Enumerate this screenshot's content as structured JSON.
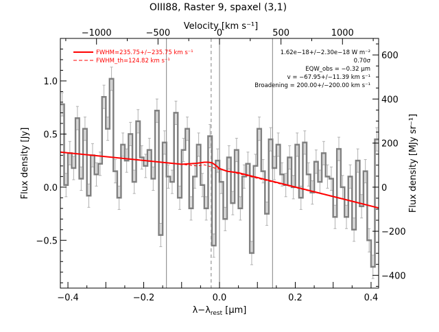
{
  "chart_data": {
    "type": "line",
    "title": "OIII88, Raster 9, spaxel (3,1)",
    "xlabel": "λ−λ",
    "xlabel_sub": "rest",
    "xlabel_unit": " [μm]",
    "ylabel": "Flux density [Jy]",
    "top_axis_label": "Velocity [km s⁻¹]",
    "right_axis_label": "Flux density [MJy sr⁻¹]",
    "xlim": [
      -0.42,
      0.42
    ],
    "ylim": [
      -0.95,
      1.4
    ],
    "top_xlim": [
      -1294,
      1294
    ],
    "right_ylim": [
      -458,
      675
    ],
    "x_ticks": [
      -0.4,
      -0.2,
      0.0,
      0.2,
      0.4
    ],
    "x_tick_labels": [
      "−0.4",
      "−0.2",
      "0.0",
      "0.2",
      "0.4"
    ],
    "y_ticks": [
      -0.5,
      0.0,
      0.5,
      1.0
    ],
    "y_tick_labels": [
      "−0.5",
      "0.0",
      "0.5",
      "1.0"
    ],
    "top_ticks": [
      -1000,
      -500,
      0,
      500,
      1000
    ],
    "top_tick_labels": [
      "−1000",
      "−500",
      "0",
      "500",
      "1000"
    ],
    "right_ticks": [
      -400,
      -200,
      0,
      200,
      400,
      600
    ],
    "right_tick_labels": [
      "−400",
      "−200",
      "0",
      "200",
      "400",
      "600"
    ],
    "legend": {
      "position": "top-left",
      "entries": [
        {
          "label": "FWHM=235.75+/−235.75 km s⁻¹",
          "style": "solid",
          "color": "#ff0000"
        },
        {
          "label": "FWHM_th=124.82 km s⁻¹",
          "style": "dashed",
          "color": "#ff0000"
        }
      ]
    },
    "annotations": [
      "1.62e−18+/−2.30e−18 W m⁻²",
      "0.70σ",
      "EQW_obs = −0.32 μm",
      "v = −67.95+/−11.39 km s⁻¹",
      "Broadening = 200.00+/−200.00 km s⁻¹"
    ],
    "vertical_lines": [
      {
        "x": -0.14,
        "style": "solid",
        "color": "#808080"
      },
      {
        "x": -0.022,
        "style": "dashed",
        "color": "#808080"
      },
      {
        "x": 0.0,
        "style": "solid",
        "color": "#808080"
      },
      {
        "x": 0.14,
        "style": "solid",
        "color": "#808080"
      }
    ],
    "series": [
      {
        "name": "spectrum",
        "style": "histogram",
        "color": "#808080",
        "x": [
          -0.415,
          -0.405,
          -0.395,
          -0.385,
          -0.375,
          -0.365,
          -0.355,
          -0.345,
          -0.335,
          -0.325,
          -0.315,
          -0.305,
          -0.295,
          -0.285,
          -0.275,
          -0.265,
          -0.255,
          -0.245,
          -0.235,
          -0.225,
          -0.215,
          -0.205,
          -0.195,
          -0.185,
          -0.175,
          -0.165,
          -0.155,
          -0.145,
          -0.135,
          -0.125,
          -0.115,
          -0.105,
          -0.095,
          -0.085,
          -0.075,
          -0.065,
          -0.055,
          -0.045,
          -0.035,
          -0.025,
          -0.015,
          -0.005,
          0.005,
          0.015,
          0.025,
          0.035,
          0.045,
          0.055,
          0.065,
          0.075,
          0.085,
          0.095,
          0.105,
          0.115,
          0.125,
          0.135,
          0.145,
          0.155,
          0.165,
          0.175,
          0.185,
          0.195,
          0.205,
          0.215,
          0.225,
          0.235,
          0.245,
          0.255,
          0.265,
          0.275,
          0.285,
          0.295,
          0.305,
          0.315,
          0.325,
          0.335,
          0.345,
          0.355,
          0.365,
          0.375,
          0.385,
          0.395,
          0.405,
          0.415
        ],
        "y": [
          0.78,
          0.02,
          0.32,
          0.18,
          0.65,
          0.08,
          0.55,
          -0.08,
          0.3,
          0.12,
          0.22,
          0.85,
          0.55,
          1.02,
          0.15,
          -0.1,
          0.4,
          0.25,
          0.5,
          0.05,
          0.62,
          0.28,
          0.2,
          0.35,
          0.08,
          0.72,
          -0.45,
          0.42,
          0.1,
          0.05,
          0.7,
          -0.1,
          0.35,
          0.55,
          -0.2,
          0.1,
          0.4,
          0.02,
          -0.2,
          0.48,
          -0.55,
          0.25,
          0.05,
          -0.3,
          0.28,
          -0.15,
          0.35,
          -0.2,
          0.1,
          0.22,
          -0.62,
          0.2,
          0.55,
          0.15,
          -0.25,
          0.45,
          0.18,
          0.4,
          0.12,
          0.02,
          0.28,
          0.0,
          0.4,
          -0.1,
          0.42,
          0.12,
          -0.05,
          0.24,
          0.05,
          0.32,
          0.1,
          0.08,
          -0.28,
          0.36,
          0.0,
          -0.28,
          0.1,
          -0.4,
          0.25,
          -0.18,
          0.15,
          -0.5,
          -0.75,
          0.45
        ],
        "errors": [
          0.11,
          0.11,
          0.11,
          0.11,
          0.11,
          0.11,
          0.11,
          0.11,
          0.11,
          0.11,
          0.11,
          0.11,
          0.11,
          0.11,
          0.11,
          0.11,
          0.11,
          0.11,
          0.11,
          0.11,
          0.11,
          0.11,
          0.11,
          0.11,
          0.11,
          0.11,
          0.11,
          0.11,
          0.11,
          0.11,
          0.11,
          0.11,
          0.11,
          0.11,
          0.11,
          0.11,
          0.11,
          0.11,
          0.11,
          0.11,
          0.11,
          0.11,
          0.11,
          0.11,
          0.11,
          0.11,
          0.11,
          0.11,
          0.11,
          0.11,
          0.11,
          0.11,
          0.11,
          0.11,
          0.11,
          0.11,
          0.11,
          0.11,
          0.11,
          0.11,
          0.11,
          0.11,
          0.11,
          0.11,
          0.11,
          0.11,
          0.11,
          0.11,
          0.11,
          0.11,
          0.11,
          0.11,
          0.11,
          0.11,
          0.11,
          0.11,
          0.11,
          0.11,
          0.11,
          0.11,
          0.11,
          0.11,
          0.11,
          0.11
        ]
      },
      {
        "name": "FWHM=235.75+/−235.75 km s⁻¹",
        "style": "solid",
        "color": "#ff0000",
        "x": [
          -0.42,
          -0.1,
          -0.06,
          -0.04,
          -0.03,
          -0.02,
          -0.01,
          0.0,
          0.02,
          0.05,
          0.42
        ],
        "y": [
          0.33,
          0.215,
          0.225,
          0.235,
          0.235,
          0.23,
          0.205,
          0.175,
          0.15,
          0.135,
          -0.195
        ]
      },
      {
        "name": "FWHM_th=124.82 km s⁻¹",
        "style": "dashed",
        "color": "#ff0000",
        "x": [
          -0.42,
          -0.06,
          -0.04,
          -0.03,
          -0.02,
          -0.01,
          0.0,
          0.42
        ],
        "y": [
          0.33,
          0.2,
          0.21,
          0.2,
          0.19,
          0.175,
          0.17,
          -0.195
        ]
      }
    ]
  }
}
